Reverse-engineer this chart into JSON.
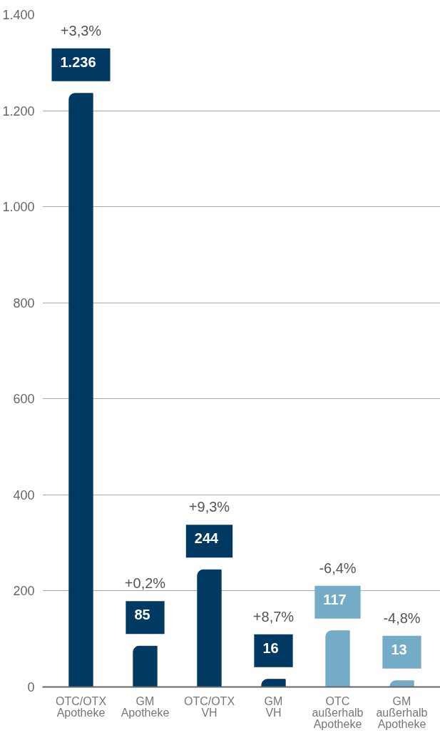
{
  "chart_data": {
    "type": "bar",
    "categories": [
      "OTC/OTX\nApotheke",
      "GM\nApotheke",
      "OTC/OTX\nVH",
      "GM\nVH",
      "OTC\naußerhalb\nApotheke",
      "GM\naußerhalb\nApotheke"
    ],
    "values": [
      1236,
      85,
      244,
      16,
      117,
      13
    ],
    "colors": [
      "#003a63",
      "#003a63",
      "#003a63",
      "#003a63",
      "#74abc7",
      "#74abc7"
    ],
    "value_labels": [
      "1.236",
      "85",
      "244",
      "16",
      "117",
      "13"
    ],
    "annotations": [
      "+3,3%",
      "+0,2%",
      "+9,3%",
      "+8,7%",
      "-6,4%",
      "-4,8%"
    ],
    "ylim": [
      0,
      1400
    ],
    "yticks": [
      0,
      200,
      400,
      600,
      800,
      {
        "value": 1000,
        "label": "1.000"
      },
      {
        "value": 1200,
        "label": "1.200"
      },
      {
        "value": 1400,
        "label": "1.400"
      }
    ],
    "grid": "y"
  }
}
